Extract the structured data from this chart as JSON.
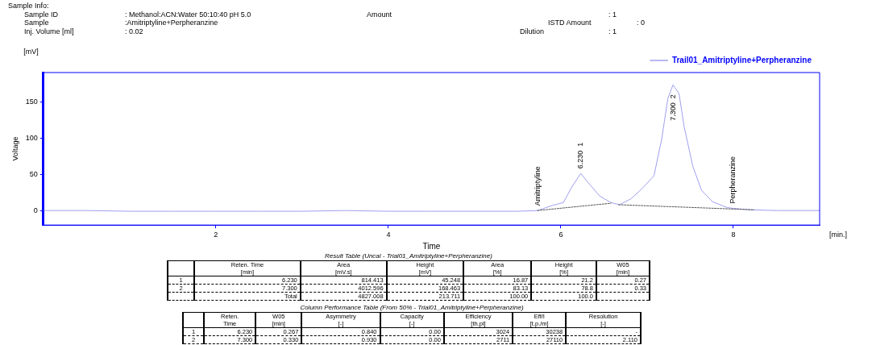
{
  "chart_data": {
    "type": "line",
    "xlabel": "Time",
    "ylabel": "Voltage",
    "xlim": [
      0,
      9
    ],
    "ylim": [
      -20,
      190
    ],
    "xticks": [
      2,
      4,
      6,
      8
    ],
    "yticks": [
      0,
      50,
      100,
      150
    ],
    "legend": "top right",
    "marker": "none",
    "line_style": "solid",
    "series": [
      {
        "name": "Trail01_Amitriptyline+Perpheranzine",
        "color": "#9f9ff0",
        "x": [
          0,
          0.5,
          1,
          1.5,
          2,
          2.5,
          3,
          3.5,
          4,
          4.5,
          5,
          5.5,
          5.73,
          5.9,
          6.03,
          6.12,
          6.23,
          6.32,
          6.45,
          6.58,
          6.68,
          6.81,
          6.94,
          7.08,
          7.17,
          7.24,
          7.3,
          7.37,
          7.43,
          7.53,
          7.63,
          7.76,
          7.93,
          8.0,
          8.19,
          8.5,
          9
        ],
        "values": [
          0,
          0,
          -1,
          -1,
          -1,
          -1,
          -1,
          0,
          -1,
          -1,
          -1,
          -1,
          0,
          7,
          11,
          31,
          51,
          38,
          20,
          11,
          8,
          16,
          30,
          48,
          99,
          154,
          173,
          161,
          115,
          61,
          28,
          12,
          4,
          3,
          1,
          0,
          0
        ]
      },
      {
        "color": "#555555",
        "line_style": "dashed",
        "x": [
          5.73,
          6.58,
          6.62,
          6.67,
          8.24
        ],
        "values": [
          0,
          10,
          null,
          8,
          1
        ]
      }
    ],
    "annotations": [
      "Sample Info:",
      "Sample ID\t: Methanol:ACN:Water 50:10:40 pH 5.0\tAmount\t: 1",
      "Sample\t:Amitriptyline+Perpheranzine\tISTD Amount\t: 0",
      "Inj. Volume [ml]\t: 0.02\tDilution\t: 1",
      "[mV]",
      "[min.]",
      "Result Table (Uncal - Trial01_Amitriptyline+Perpheranzine)",
      "\tReten. Time\n[min]\tArea\n[mV.s]\tHeight\n[mV]\tArea\n[%]\tHeight\n[%]\tW05\n[min]",
      "1\t6.230\t814.413\t45.248\t16.87\t21.2\t0.27",
      "2\t7.300\t4012.596\t168.463\t83.13\t78.8\t0.33",
      "\tTotal\t4827.008\t213.711\t100.00\t100.0\t",
      "Column Performance Table (From 50% - Trial01_Amitriptyline+Perpheranzine)",
      "\tReten.\nTime\tW05\n[min]\tAsymmetry\n[-]\tCapacity\n[-]\tEfficiency\n[th.pl]\tEff/l\n[t.p./m]\tResolution\n[-]",
      "1\t6.230\t0.267\t0.840\t0.00\t3024\t30238\t-",
      "2\t7.300\t0.330\t0.930\t0.00\t2711\t27110\t2.110",
      {
        "text": "Amitriptyline",
        "x": 5.73,
        "y": 0
      },
      {
        "text": "6.230  1",
        "x": 6.23,
        "y": 51
      },
      {
        "text": "7.300  2",
        "x": 7.3,
        "y": 173
      },
      {
        "text": "Perpheranzine",
        "x": 8.0,
        "y": 3
      }
    ]
  }
}
